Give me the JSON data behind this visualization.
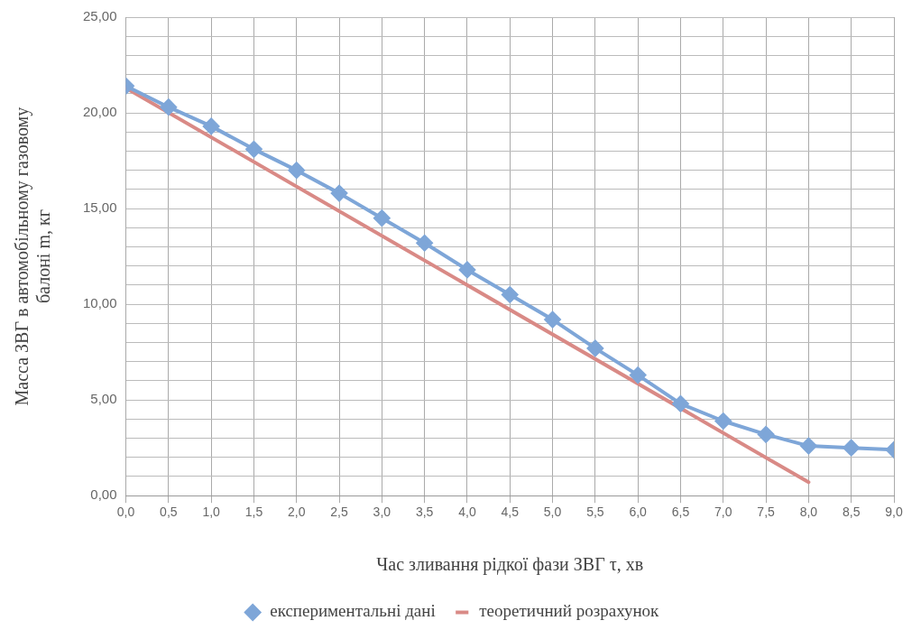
{
  "chart_data": {
    "type": "line",
    "xlabel": "Час зливання рідкої фази ЗВГ τ, хв",
    "ylabel": "Масса ЗВГ в автомобільному газовому\nбалоні m, кг",
    "xlim": [
      0,
      9
    ],
    "xticks": [
      {
        "value": 0,
        "label": "0,0"
      },
      {
        "value": 0.5,
        "label": "0,5"
      },
      {
        "value": 1,
        "label": "1,0"
      },
      {
        "value": 1.5,
        "label": "1,5"
      },
      {
        "value": 2,
        "label": "2,0"
      },
      {
        "value": 2.5,
        "label": "2,5"
      },
      {
        "value": 3,
        "label": "3,0"
      },
      {
        "value": 3.5,
        "label": "3,5"
      },
      {
        "value": 4,
        "label": "4,0"
      },
      {
        "value": 4.5,
        "label": "4,5"
      },
      {
        "value": 5,
        "label": "5,0"
      },
      {
        "value": 5.5,
        "label": "5,5"
      },
      {
        "value": 6,
        "label": "6,0"
      },
      {
        "value": 6.5,
        "label": "6,5"
      },
      {
        "value": 7,
        "label": "7,0"
      },
      {
        "value": 7.5,
        "label": "7,5"
      },
      {
        "value": 8,
        "label": "8,0"
      },
      {
        "value": 8.5,
        "label": "8,5"
      },
      {
        "value": 9,
        "label": "9,0"
      }
    ],
    "ylim": [
      0,
      25
    ],
    "yticks": [
      {
        "value": 0,
        "label": "0,00"
      },
      {
        "value": 1,
        "label": null
      },
      {
        "value": 2,
        "label": null
      },
      {
        "value": 3,
        "label": null
      },
      {
        "value": 4,
        "label": null
      },
      {
        "value": 5,
        "label": "5,00"
      },
      {
        "value": 6,
        "label": null
      },
      {
        "value": 7,
        "label": null
      },
      {
        "value": 8,
        "label": null
      },
      {
        "value": 9,
        "label": null
      },
      {
        "value": 10,
        "label": "10,00"
      },
      {
        "value": 11,
        "label": null
      },
      {
        "value": 12,
        "label": null
      },
      {
        "value": 13,
        "label": null
      },
      {
        "value": 14,
        "label": null
      },
      {
        "value": 15,
        "label": "15,00"
      },
      {
        "value": 16,
        "label": null
      },
      {
        "value": 17,
        "label": null
      },
      {
        "value": 18,
        "label": null
      },
      {
        "value": 19,
        "label": null
      },
      {
        "value": 20,
        "label": "20,00"
      },
      {
        "value": 21,
        "label": null
      },
      {
        "value": 22,
        "label": null
      },
      {
        "value": 23,
        "label": null
      },
      {
        "value": 24,
        "label": null
      },
      {
        "value": 25,
        "label": "25,00"
      }
    ],
    "grid": true,
    "legend": "bottom",
    "series": [
      {
        "name": "експериментальні дані",
        "color": "#7ea6d8",
        "marker": "diamond",
        "x": [
          0,
          0.5,
          1,
          1.5,
          2,
          2.5,
          3,
          3.5,
          4,
          4.5,
          5,
          5.5,
          6,
          6.5,
          7,
          7.5,
          8,
          8.5,
          9
        ],
        "values": [
          21.4,
          20.3,
          19.3,
          18.1,
          17.0,
          15.8,
          14.5,
          13.2,
          11.8,
          10.5,
          9.2,
          7.7,
          6.3,
          4.8,
          3.9,
          3.2,
          2.6,
          2.5,
          2.4
        ]
      },
      {
        "name": "теоретичний розрахунок",
        "color": "#d98a86",
        "marker": "none",
        "x": [
          0,
          8
        ],
        "values": [
          21.3,
          0.7
        ]
      }
    ]
  }
}
